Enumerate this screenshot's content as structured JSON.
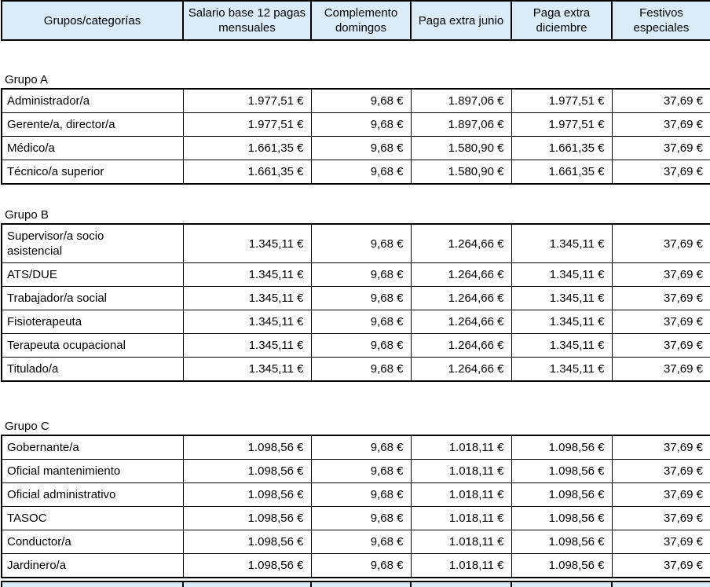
{
  "header": {
    "columns": [
      "Grupos/categorías",
      "Salario base 12 pagas mensuales",
      "Complemento domingos",
      "Paga extra junio",
      "Paga extra diciembre",
      "Festivos especiales"
    ]
  },
  "groups": [
    {
      "label": "Grupo A",
      "rows": [
        {
          "category": "Administrador/a",
          "values": [
            "1.977,51 €",
            "9,68 €",
            "1.897,06 €",
            "1.977,51 €",
            "37,69 €"
          ]
        },
        {
          "category": "Gerente/a, director/a",
          "values": [
            "1.977,51 €",
            "9,68 €",
            "1.897,06 €",
            "1.977,51 €",
            "37,69 €"
          ]
        },
        {
          "category": "Médico/a",
          "values": [
            "1.661,35 €",
            "9,68 €",
            "1.580,90 €",
            "1.661,35 €",
            "37,69 €"
          ]
        },
        {
          "category": "Técnico/a superior",
          "values": [
            "1.661,35 €",
            "9,68 €",
            "1.580,90 €",
            "1.661,35 €",
            "37,69 €"
          ]
        }
      ]
    },
    {
      "label": "Grupo B",
      "rows": [
        {
          "category": "Supervisor/a socio asistencial",
          "tall": true,
          "values": [
            "1.345,11 €",
            "9,68 €",
            "1.264,66 €",
            "1.345,11 €",
            "37,69 €"
          ]
        },
        {
          "category": "ATS/DUE",
          "values": [
            "1.345,11 €",
            "9,68 €",
            "1.264,66 €",
            "1.345,11 €",
            "37,69 €"
          ]
        },
        {
          "category": "Trabajador/a social",
          "values": [
            "1.345,11 €",
            "9,68 €",
            "1.264,66 €",
            "1.345,11 €",
            "37,69 €"
          ]
        },
        {
          "category": "Fisioterapeuta",
          "values": [
            "1.345,11 €",
            "9,68 €",
            "1.264,66 €",
            "1.345,11 €",
            "37,69 €"
          ]
        },
        {
          "category": "Terapeuta ocupacional",
          "values": [
            "1.345,11 €",
            "9,68 €",
            "1.264,66 €",
            "1.345,11 €",
            "37,69 €"
          ]
        },
        {
          "category": "Titulado/a",
          "values": [
            "1.345,11 €",
            "9,68 €",
            "1.264,66 €",
            "1.345,11 €",
            "37,69 €"
          ]
        }
      ]
    },
    {
      "label": "Grupo C",
      "rows": [
        {
          "category": "Gobernante/a",
          "values": [
            "1.098,56 €",
            "9,68 €",
            "1.018,11 €",
            "1.098,56 €",
            "37,69 €"
          ]
        },
        {
          "category": "Oficial mantenimiento",
          "values": [
            "1.098,56 €",
            "9,68 €",
            "1.018,11 €",
            "1.098,56 €",
            "37,69 €"
          ]
        },
        {
          "category": "Oficial administrativo",
          "values": [
            "1.098,56 €",
            "9,68 €",
            "1.018,11 €",
            "1.098,56 €",
            "37,69 €"
          ]
        },
        {
          "category": "TASOC",
          "values": [
            "1.098,56 €",
            "9,68 €",
            "1.018,11 €",
            "1.098,56 €",
            "37,69 €"
          ]
        },
        {
          "category": "Conductor/a",
          "values": [
            "1.098,56 €",
            "9,68 €",
            "1.018,11 €",
            "1.098,56 €",
            "37,69 €"
          ]
        },
        {
          "category": "Jardinero/a",
          "values": [
            "1.098,56 €",
            "9,68 €",
            "1.018,11 €",
            "1.098,56 €",
            "37,69 €"
          ]
        }
      ]
    }
  ],
  "colors": {
    "header_bg": "#d9ecf8",
    "border": "#000000"
  }
}
